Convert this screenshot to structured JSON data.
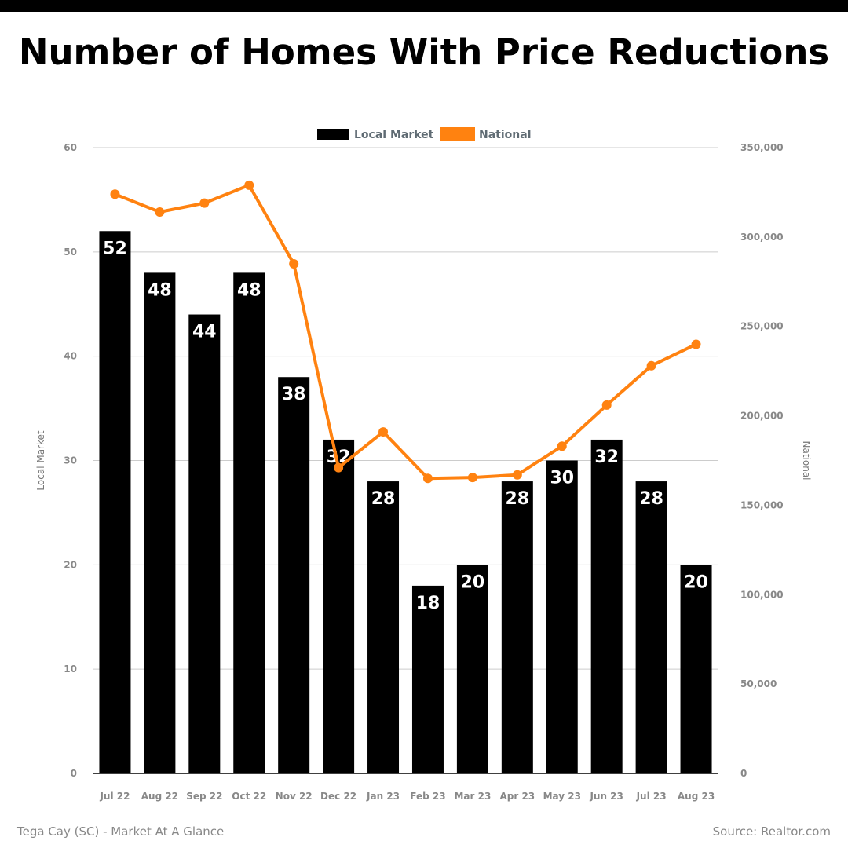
{
  "footer": {
    "left": "Tega Cay (SC) - Market At A Glance",
    "right": "Source: Realtor.com"
  },
  "colors": {
    "local": "#000000",
    "national": "#ff8210",
    "grid": "#cccccc",
    "tick": "#888888",
    "legend_text": "#5f6b73"
  },
  "chart_data": {
    "type": "bar",
    "title": "Number of Homes With Price Reductions",
    "categories": [
      "Jul 22",
      "Aug 22",
      "Sep 22",
      "Oct 22",
      "Nov 22",
      "Dec 22",
      "Jan 23",
      "Feb 23",
      "Mar 23",
      "Apr 23",
      "May 23",
      "Jun 23",
      "Jul 23",
      "Aug 23"
    ],
    "series": [
      {
        "name": "Local Market",
        "type": "bar",
        "axis": "left",
        "values": [
          52,
          48,
          44,
          48,
          38,
          32,
          28,
          18,
          20,
          28,
          30,
          32,
          28,
          20
        ]
      },
      {
        "name": "National",
        "type": "line",
        "axis": "right",
        "values": [
          324000,
          314000,
          319000,
          329000,
          285000,
          171000,
          191000,
          165000,
          165500,
          167000,
          183000,
          206000,
          228000,
          240000
        ]
      }
    ],
    "ylabel": "Local Market",
    "y2label": "National",
    "ylim": [
      0,
      60
    ],
    "y2lim": [
      0,
      350000
    ],
    "yticks": [
      "0",
      "10",
      "20",
      "30",
      "40",
      "50",
      "60"
    ],
    "y2ticks": [
      "0",
      "50,000",
      "100,000",
      "150,000",
      "200,000",
      "250,000",
      "300,000",
      "350,000"
    ],
    "legend": "top-center",
    "grid": true
  }
}
